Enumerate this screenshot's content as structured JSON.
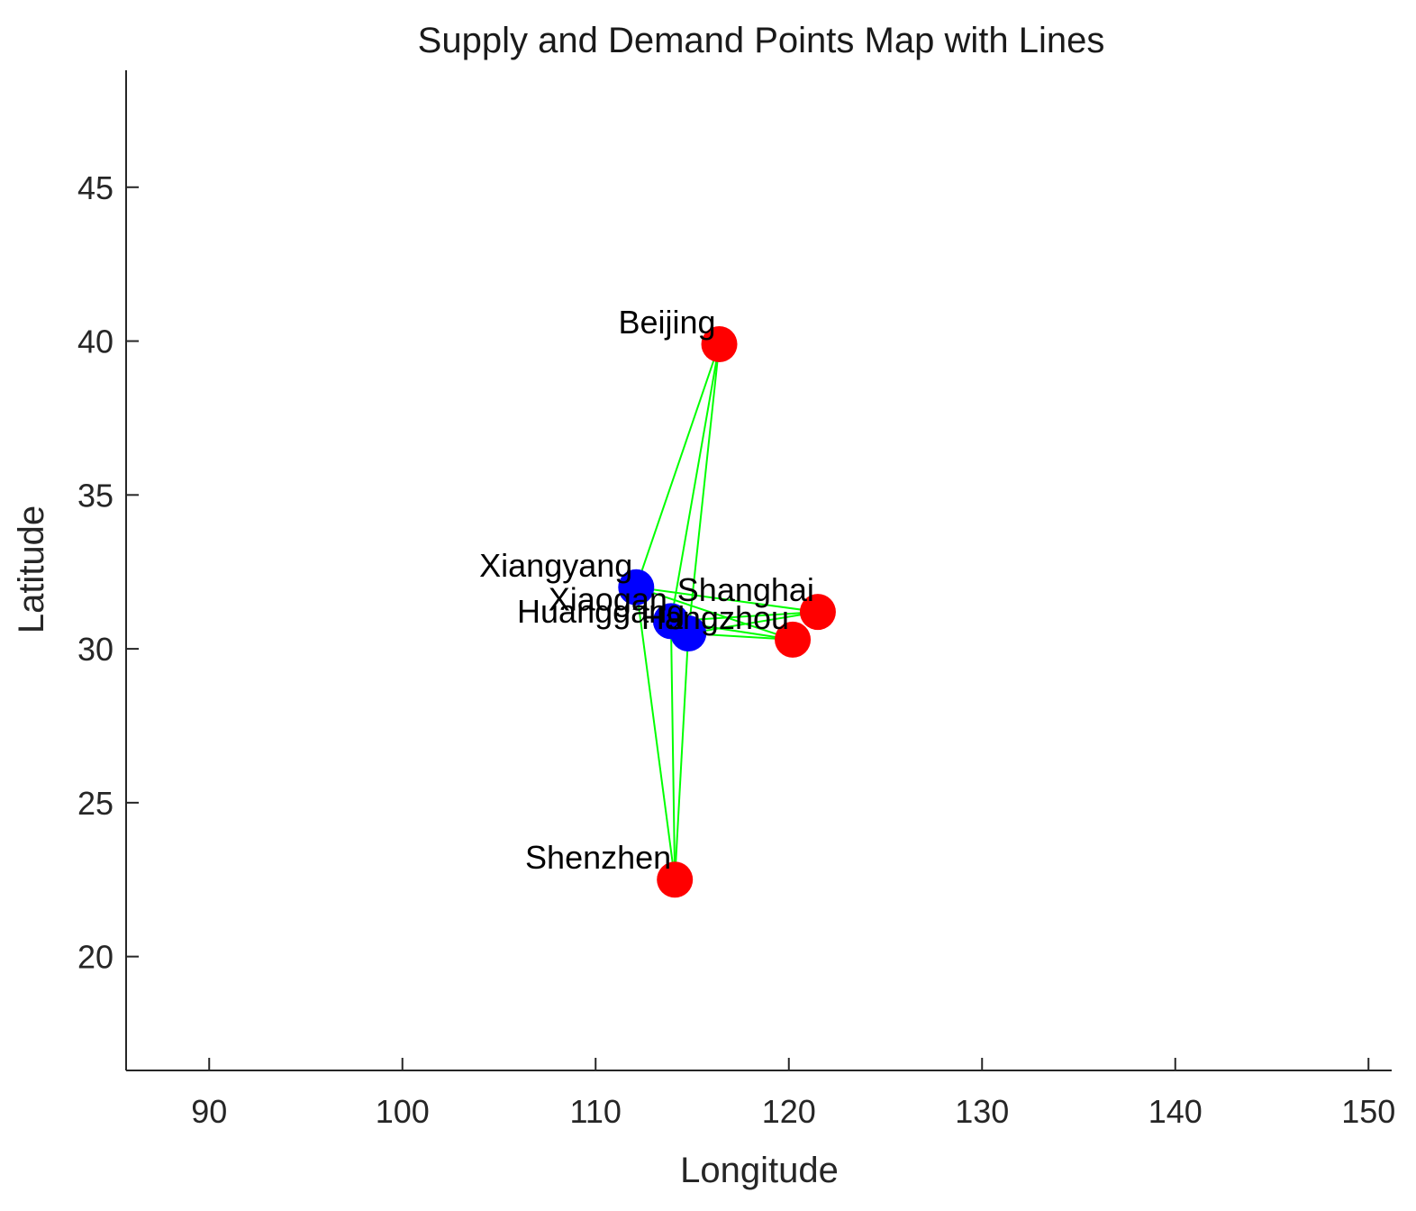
{
  "chart_data": {
    "type": "scatter",
    "title": "Supply and Demand Points Map with Lines",
    "xlabel": "Longitude",
    "ylabel": "Latitude",
    "xlim": [
      85.7,
      151.2
    ],
    "ylim": [
      16.3,
      48.8
    ],
    "xticks": [
      90,
      100,
      110,
      120,
      130,
      140,
      150
    ],
    "yticks": [
      20,
      25,
      30,
      35,
      40,
      45
    ],
    "grid": false,
    "box": false,
    "colors": {
      "supply": "#ff0000",
      "demand": "#0000ff",
      "line": "#00ff00",
      "axis": "#262626"
    },
    "supply_points": [
      {
        "name": "Xiangyang",
        "lon": 112.1,
        "lat": 32.0
      },
      {
        "name": "Xiaogan",
        "lon": 113.9,
        "lat": 30.9
      },
      {
        "name": "Huanggang",
        "lon": 114.8,
        "lat": 30.5
      }
    ],
    "demand_points": [
      {
        "name": "Beijing",
        "lon": 116.4,
        "lat": 39.9
      },
      {
        "name": "Shanghai",
        "lon": 121.5,
        "lat": 31.2
      },
      {
        "name": "Hangzhou",
        "lon": 120.2,
        "lat": 30.3
      },
      {
        "name": "Shenzhen",
        "lon": 114.1,
        "lat": 22.5
      }
    ]
  }
}
